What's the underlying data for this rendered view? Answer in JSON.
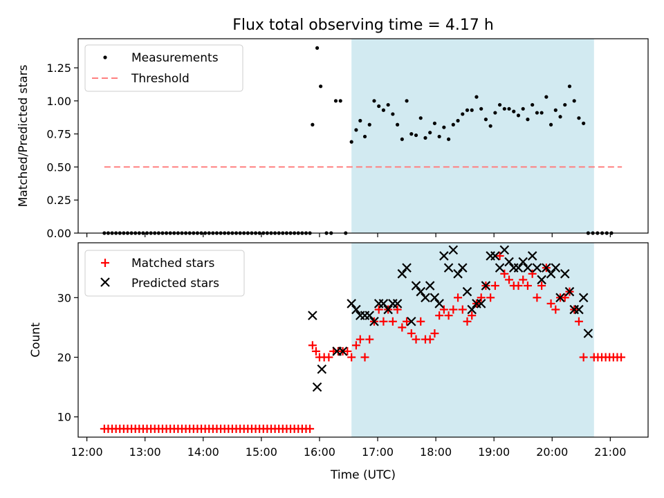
{
  "chart_data": {
    "title": "Flux total observing time = 4.17 h",
    "xlabel": "Time (UTC)",
    "x_units": "hours (UTC)",
    "xlim": [
      11.85,
      21.65
    ],
    "x_ticks": [
      {
        "value": 12,
        "label": "12:00"
      },
      {
        "value": 13,
        "label": "13:00"
      },
      {
        "value": 14,
        "label": "14:00"
      },
      {
        "value": 15,
        "label": "15:00"
      },
      {
        "value": 16,
        "label": "16:00"
      },
      {
        "value": 17,
        "label": "17:00"
      },
      {
        "value": 18,
        "label": "18:00"
      },
      {
        "value": 19,
        "label": "19:00"
      },
      {
        "value": 20,
        "label": "20:00"
      },
      {
        "value": 21,
        "label": "21:00"
      }
    ],
    "observing_window": {
      "start": 16.55,
      "end": 20.72,
      "color": "#add8e6"
    },
    "panels": [
      {
        "type": "scatter",
        "ylabel": "Matched/Predicted stars",
        "ylim": [
          0,
          1.47
        ],
        "y_ticks": [
          {
            "value": 0,
            "label": "0.00"
          },
          {
            "value": 0.25,
            "label": "0.25"
          },
          {
            "value": 0.5,
            "label": "0.50"
          },
          {
            "value": 0.75,
            "label": "0.75"
          },
          {
            "value": 1.0,
            "label": "1.00"
          },
          {
            "value": 1.25,
            "label": "1.25"
          }
        ],
        "legend": {
          "position": "top-left",
          "entries": [
            "Measurements",
            "Threshold"
          ]
        },
        "series": [
          {
            "name": "Measurements",
            "marker": "dot",
            "color": "#000000",
            "zero_run": {
              "start": 12.3,
              "end": 15.82,
              "step": 0.0667
            },
            "points": [
              [
                15.88,
                0.82
              ],
              [
                15.96,
                1.4
              ],
              [
                16.02,
                1.11
              ],
              [
                16.12,
                0.0
              ],
              [
                16.2,
                0.0
              ],
              [
                16.28,
                1.0
              ],
              [
                16.36,
                1.0
              ],
              [
                16.45,
                0.0
              ],
              [
                16.55,
                0.69
              ],
              [
                16.63,
                0.78
              ],
              [
                16.7,
                0.85
              ],
              [
                16.78,
                0.73
              ],
              [
                16.86,
                0.82
              ],
              [
                16.94,
                1.0
              ],
              [
                17.02,
                0.96
              ],
              [
                17.1,
                0.93
              ],
              [
                17.18,
                0.97
              ],
              [
                17.26,
                0.9
              ],
              [
                17.34,
                0.82
              ],
              [
                17.42,
                0.71
              ],
              [
                17.5,
                1.0
              ],
              [
                17.58,
                0.75
              ],
              [
                17.66,
                0.74
              ],
              [
                17.74,
                0.87
              ],
              [
                17.82,
                0.72
              ],
              [
                17.9,
                0.76
              ],
              [
                17.98,
                0.83
              ],
              [
                18.06,
                0.73
              ],
              [
                18.14,
                0.8
              ],
              [
                18.22,
                0.71
              ],
              [
                18.3,
                0.82
              ],
              [
                18.38,
                0.85
              ],
              [
                18.46,
                0.9
              ],
              [
                18.54,
                0.93
              ],
              [
                18.62,
                0.93
              ],
              [
                18.7,
                1.03
              ],
              [
                18.78,
                0.94
              ],
              [
                18.86,
                0.86
              ],
              [
                18.94,
                0.81
              ],
              [
                19.02,
                0.91
              ],
              [
                19.1,
                0.97
              ],
              [
                19.18,
                0.94
              ],
              [
                19.26,
                0.94
              ],
              [
                19.34,
                0.92
              ],
              [
                19.42,
                0.89
              ],
              [
                19.5,
                0.94
              ],
              [
                19.58,
                0.86
              ],
              [
                19.66,
                0.97
              ],
              [
                19.74,
                0.91
              ],
              [
                19.82,
                0.91
              ],
              [
                19.9,
                1.03
              ],
              [
                19.98,
                0.82
              ],
              [
                20.06,
                0.93
              ],
              [
                20.14,
                0.88
              ],
              [
                20.22,
                0.97
              ],
              [
                20.3,
                1.11
              ],
              [
                20.38,
                1.0
              ],
              [
                20.46,
                0.87
              ],
              [
                20.54,
                0.83
              ],
              [
                20.62,
                0.0
              ],
              [
                20.7,
                0.0
              ],
              [
                20.78,
                0.0
              ],
              [
                20.86,
                0.0
              ],
              [
                20.94,
                0.0
              ],
              [
                21.02,
                0.0
              ]
            ]
          },
          {
            "name": "Threshold",
            "type": "line",
            "style": "dashed",
            "color": "#ff7f7f",
            "x": [
              12.3,
              21.2
            ],
            "y": [
              0.5,
              0.5
            ]
          }
        ]
      },
      {
        "type": "scatter",
        "ylabel": "Count",
        "ylim": [
          6.6,
          39.2
        ],
        "y_ticks": [
          {
            "value": 10,
            "label": "10"
          },
          {
            "value": 20,
            "label": "20"
          },
          {
            "value": 30,
            "label": "30"
          }
        ],
        "legend": {
          "position": "top-left",
          "entries": [
            "Matched stars",
            "Predicted stars"
          ]
        },
        "series": [
          {
            "name": "Matched stars",
            "marker": "plus",
            "color": "#ff0000",
            "flat_runs": [
              {
                "start": 12.3,
                "end": 15.82,
                "step": 0.0667,
                "value": 8
              },
              {
                "start": 20.72,
                "end": 21.2,
                "step": 0.0667,
                "value": 20
              }
            ],
            "points": [
              [
                15.88,
                22
              ],
              [
                15.94,
                21
              ],
              [
                16.0,
                20
              ],
              [
                16.08,
                20
              ],
              [
                16.16,
                20
              ],
              [
                16.24,
                21
              ],
              [
                16.32,
                21
              ],
              [
                16.4,
                21
              ],
              [
                16.48,
                21
              ],
              [
                16.55,
                20
              ],
              [
                16.63,
                22
              ],
              [
                16.7,
                23
              ],
              [
                16.78,
                20
              ],
              [
                16.86,
                23
              ],
              [
                16.94,
                26
              ],
              [
                17.02,
                28
              ],
              [
                17.1,
                26
              ],
              [
                17.18,
                28
              ],
              [
                17.26,
                26
              ],
              [
                17.34,
                28
              ],
              [
                17.42,
                25
              ],
              [
                17.5,
                26
              ],
              [
                17.58,
                24
              ],
              [
                17.66,
                23
              ],
              [
                17.74,
                26
              ],
              [
                17.82,
                23
              ],
              [
                17.9,
                23
              ],
              [
                17.98,
                24
              ],
              [
                18.06,
                27
              ],
              [
                18.14,
                28
              ],
              [
                18.22,
                27
              ],
              [
                18.3,
                28
              ],
              [
                18.38,
                30
              ],
              [
                18.46,
                28
              ],
              [
                18.54,
                26
              ],
              [
                18.62,
                27
              ],
              [
                18.7,
                29
              ],
              [
                18.78,
                30
              ],
              [
                18.86,
                32
              ],
              [
                18.94,
                30
              ],
              [
                19.02,
                32
              ],
              [
                19.1,
                37
              ],
              [
                19.18,
                34
              ],
              [
                19.26,
                33
              ],
              [
                19.34,
                32
              ],
              [
                19.42,
                32
              ],
              [
                19.5,
                33
              ],
              [
                19.58,
                32
              ],
              [
                19.66,
                34
              ],
              [
                19.74,
                30
              ],
              [
                19.82,
                32
              ],
              [
                19.9,
                35
              ],
              [
                19.98,
                29
              ],
              [
                20.06,
                28
              ],
              [
                20.14,
                30
              ],
              [
                20.22,
                30
              ],
              [
                20.3,
                31
              ],
              [
                20.38,
                28
              ],
              [
                20.46,
                26
              ],
              [
                20.54,
                20
              ]
            ]
          },
          {
            "name": "Predicted stars",
            "marker": "x",
            "color": "#000000",
            "points": [
              [
                15.88,
                27
              ],
              [
                15.96,
                15
              ],
              [
                16.04,
                18
              ],
              [
                16.3,
                21
              ],
              [
                16.4,
                21
              ],
              [
                16.55,
                29
              ],
              [
                16.63,
                28
              ],
              [
                16.7,
                27
              ],
              [
                16.78,
                27
              ],
              [
                16.86,
                27
              ],
              [
                16.94,
                26
              ],
              [
                17.02,
                29
              ],
              [
                17.1,
                29
              ],
              [
                17.18,
                28
              ],
              [
                17.26,
                29
              ],
              [
                17.34,
                29
              ],
              [
                17.42,
                34
              ],
              [
                17.5,
                35
              ],
              [
                17.58,
                26
              ],
              [
                17.66,
                32
              ],
              [
                17.74,
                31
              ],
              [
                17.82,
                30
              ],
              [
                17.9,
                32
              ],
              [
                17.98,
                30
              ],
              [
                18.06,
                29
              ],
              [
                18.14,
                37
              ],
              [
                18.22,
                35
              ],
              [
                18.3,
                38
              ],
              [
                18.38,
                34
              ],
              [
                18.46,
                35
              ],
              [
                18.54,
                31
              ],
              [
                18.62,
                28
              ],
              [
                18.7,
                29
              ],
              [
                18.78,
                29
              ],
              [
                18.86,
                32
              ],
              [
                18.94,
                37
              ],
              [
                19.02,
                37
              ],
              [
                19.1,
                35
              ],
              [
                19.18,
                38
              ],
              [
                19.26,
                36
              ],
              [
                19.34,
                35
              ],
              [
                19.42,
                35
              ],
              [
                19.5,
                36
              ],
              [
                19.58,
                35
              ],
              [
                19.66,
                37
              ],
              [
                19.74,
                35
              ],
              [
                19.82,
                33
              ],
              [
                19.9,
                35
              ],
              [
                19.98,
                34
              ],
              [
                20.06,
                35
              ],
              [
                20.14,
                30
              ],
              [
                20.22,
                34
              ],
              [
                20.3,
                31
              ],
              [
                20.38,
                28
              ],
              [
                20.46,
                28
              ],
              [
                20.54,
                30
              ],
              [
                20.62,
                24
              ]
            ]
          }
        ]
      }
    ]
  }
}
